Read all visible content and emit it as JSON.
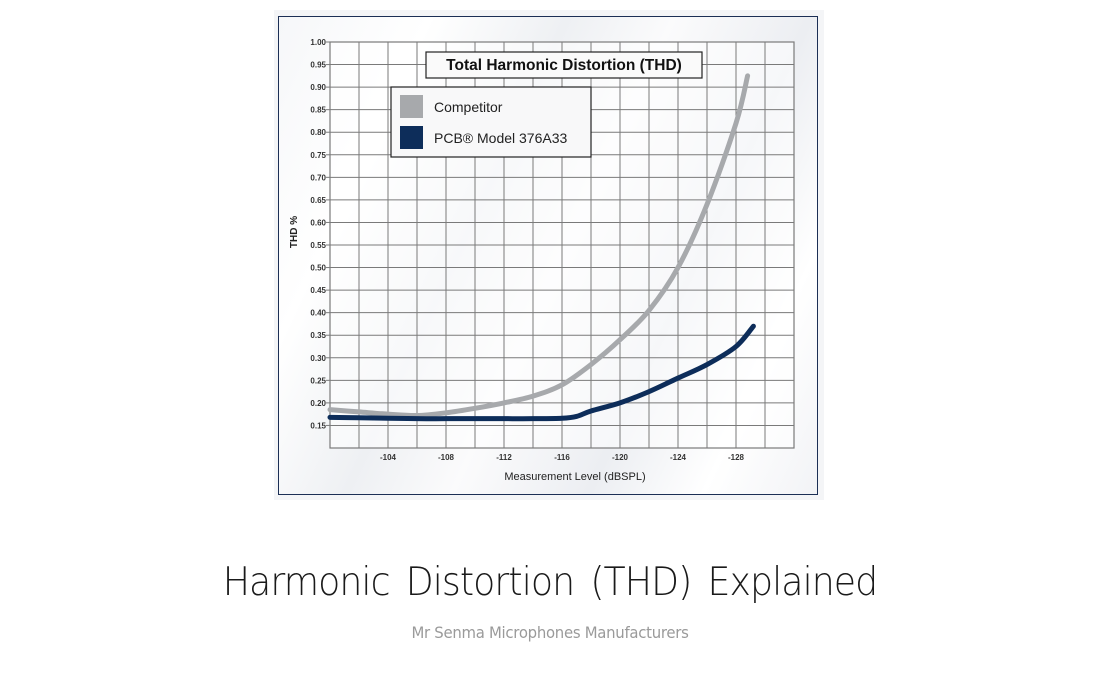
{
  "caption": {
    "title": "Harmonic Distortion (THD)  Explained",
    "subtitle": "Mr Senma Microphones Manufacturers"
  },
  "colors": {
    "competitor": "#a7a9ac",
    "pcb": "#0d2d5a",
    "frame": "#1c2f55",
    "grid": "#7a7a7a"
  },
  "chart_data": {
    "type": "line",
    "title": "Total Harmonic Distortion (THD)",
    "xlabel": "Measurement Level (dBSPL)",
    "ylabel": "THD %",
    "xlim": [
      -100,
      -132
    ],
    "ylim": [
      0.1,
      1.0
    ],
    "x_ticks": [
      -104,
      -108,
      -112,
      -116,
      -120,
      -124,
      -128
    ],
    "x_tick_labels": [
      "-104",
      "-108",
      "-112",
      "-116",
      "-120",
      "-124",
      "-128"
    ],
    "y_ticks": [
      1.0,
      0.95,
      0.9,
      0.85,
      0.8,
      0.75,
      0.7,
      0.65,
      0.6,
      0.55,
      0.5,
      0.45,
      0.4,
      0.35,
      0.3,
      0.25,
      0.2,
      0.15
    ],
    "y_tick_labels": [
      "1.00",
      "0.95",
      "0.90",
      "0.85",
      "0.80",
      "0.75",
      "0.70",
      "0.65",
      "0.60",
      "0.55",
      "0.50",
      "0.45",
      "0.40",
      "0.35",
      "0.30",
      "0.25",
      "0.20",
      "0.15"
    ],
    "grid": true,
    "grid_x_step": 2,
    "grid_y_step": 0.05,
    "legend_position": "upper left",
    "series": [
      {
        "name": "Competitor",
        "color": "#a7a9ac",
        "x": [
          -100,
          -102,
          -104,
          -106,
          -108,
          -110,
          -112,
          -114,
          -116,
          -118,
          -120,
          -122,
          -124,
          -126,
          -128,
          -128.8
        ],
        "y": [
          0.185,
          0.18,
          0.175,
          0.172,
          0.178,
          0.188,
          0.2,
          0.215,
          0.24,
          0.285,
          0.34,
          0.405,
          0.5,
          0.64,
          0.82,
          0.925
        ]
      },
      {
        "name": "PCB® Model 376A33",
        "color": "#0d2d5a",
        "x": [
          -100,
          -102,
          -104,
          -106,
          -108,
          -110,
          -112,
          -114,
          -116,
          -117,
          -118,
          -120,
          -122,
          -124,
          -126,
          -128,
          -129.2
        ],
        "y": [
          0.168,
          0.167,
          0.166,
          0.165,
          0.165,
          0.165,
          0.165,
          0.165,
          0.166,
          0.17,
          0.182,
          0.2,
          0.225,
          0.255,
          0.285,
          0.325,
          0.37
        ]
      }
    ]
  }
}
